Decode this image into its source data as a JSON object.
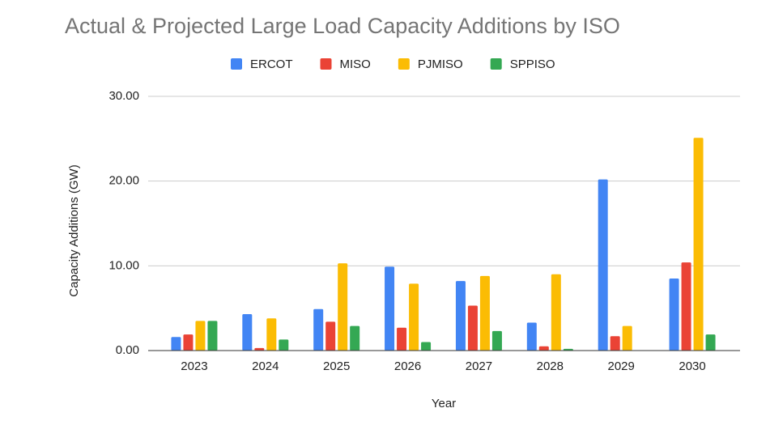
{
  "chart_data": {
    "type": "bar",
    "title": "Actual & Projected Large Load Capacity Additions by ISO",
    "x_label": "Year",
    "y_label": "Capacity Additions (GW)",
    "categories": [
      "2023",
      "2024",
      "2025",
      "2026",
      "2027",
      "2028",
      "2029",
      "2030"
    ],
    "series": [
      {
        "name": "ERCOT",
        "color": "#4285f4",
        "values": [
          1.6,
          4.3,
          4.9,
          9.9,
          8.2,
          3.3,
          20.2,
          8.5
        ]
      },
      {
        "name": "MISO",
        "color": "#ea4335",
        "values": [
          1.9,
          0.3,
          3.4,
          2.7,
          5.3,
          0.5,
          1.7,
          10.4
        ]
      },
      {
        "name": "PJMISO",
        "color": "#fbbc04",
        "values": [
          3.5,
          3.8,
          10.3,
          7.9,
          8.8,
          9.0,
          2.9,
          25.1
        ]
      },
      {
        "name": "SPPISO",
        "color": "#34a853",
        "values": [
          3.5,
          1.3,
          2.9,
          1.0,
          2.3,
          0.2,
          0,
          1.9
        ]
      }
    ],
    "ylim": [
      0,
      30
    ],
    "yticks": [
      {
        "value": 0,
        "label": "0.00"
      },
      {
        "value": 10,
        "label": "10.00"
      },
      {
        "value": 20,
        "label": "20.00"
      },
      {
        "value": 30,
        "label": "30.00"
      }
    ],
    "grid": true,
    "legend": "top"
  }
}
